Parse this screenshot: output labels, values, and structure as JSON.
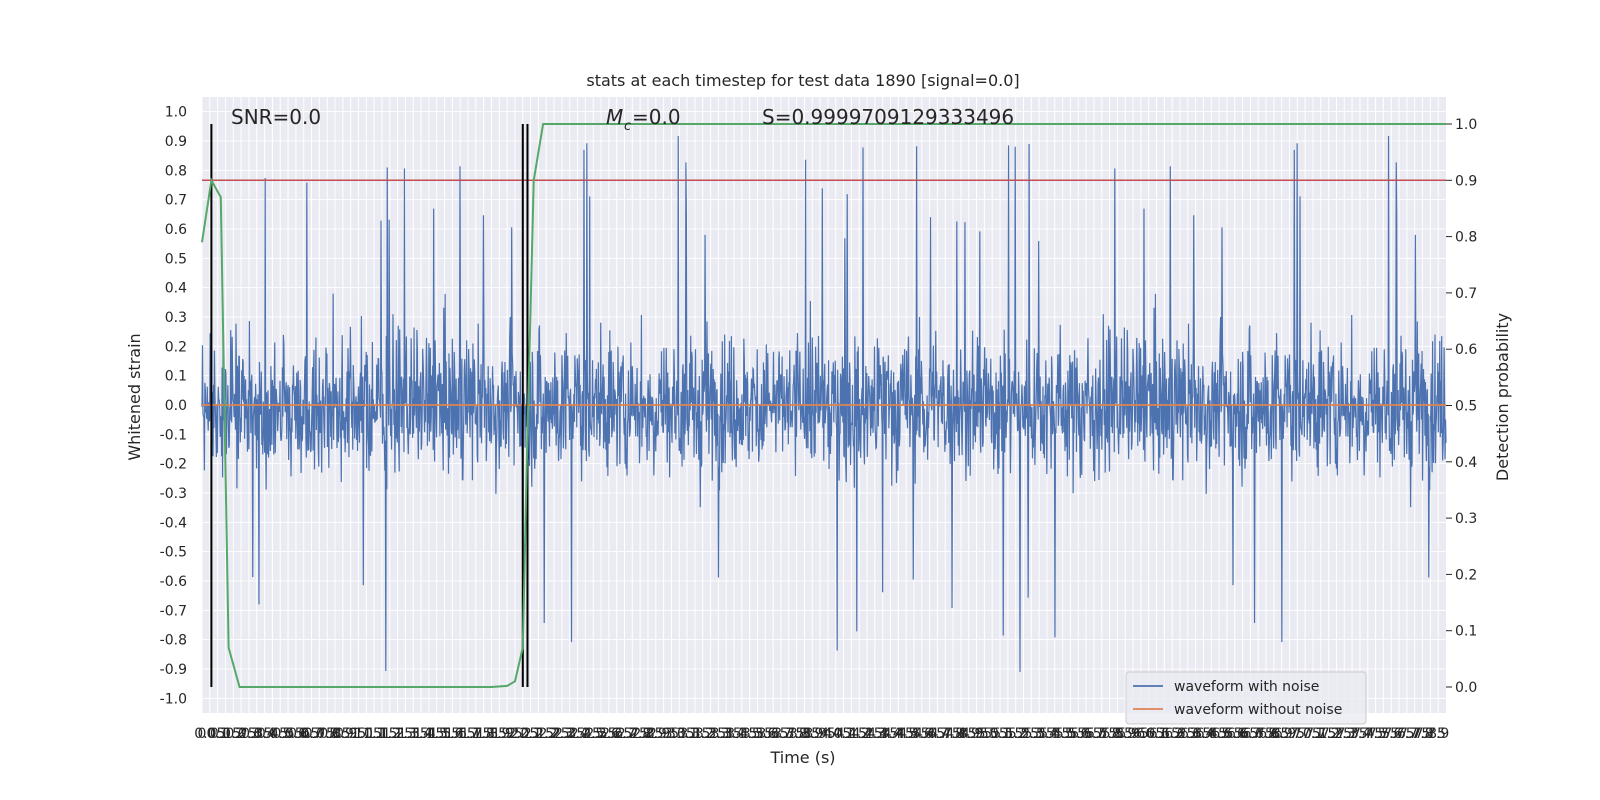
{
  "chart_data": {
    "type": "line",
    "title": "stats at each timestep for test data 1890 [signal=0.0]",
    "xlabel": "Time (s)",
    "ylabel": "Whitened strain",
    "ylabel_right": "Detection probability",
    "xlim": [
      0.0,
      7.95
    ],
    "ylim": [
      -1.05,
      1.05
    ],
    "ylim_right": [
      -0.05,
      1.0
    ],
    "x_ticks": [
      0.0,
      0.05,
      0.1,
      0.15,
      0.2,
      0.25,
      0.3,
      0.35,
      0.4,
      0.45,
      0.5,
      0.55,
      0.6,
      0.65,
      0.7,
      0.75,
      0.8,
      0.85,
      0.9,
      0.95,
      1.0,
      1.05,
      1.1,
      1.15,
      1.2,
      1.25,
      1.3,
      1.35,
      1.4,
      1.45,
      1.5,
      1.55,
      1.6,
      1.65,
      1.7,
      1.75,
      1.8,
      1.85,
      1.9,
      1.95,
      2.0,
      2.05,
      2.1,
      2.15,
      2.2,
      2.25,
      2.3,
      2.35,
      2.4,
      2.45,
      2.5,
      2.55,
      2.6,
      2.65,
      2.7,
      2.75,
      2.8,
      2.85,
      2.9,
      2.95,
      3.0,
      3.05,
      3.1,
      3.15,
      3.2,
      3.25,
      3.3,
      3.35,
      3.4,
      3.45,
      3.5,
      3.55,
      3.6,
      3.65,
      3.7,
      3.75,
      3.8,
      3.85,
      3.9,
      3.95,
      4.0,
      4.05,
      4.1,
      4.15,
      4.2,
      4.25,
      4.3,
      4.35,
      4.4,
      4.45,
      4.5,
      4.55,
      4.6,
      4.65,
      4.7,
      4.75,
      4.8,
      4.85,
      4.9,
      4.95,
      5.0,
      5.05,
      5.1,
      5.15,
      5.2,
      5.25,
      5.3,
      5.35,
      5.4,
      5.45,
      5.5,
      5.55,
      5.6,
      5.65,
      5.7,
      5.75,
      5.8,
      5.85,
      5.9,
      5.95,
      6.0,
      6.05,
      6.1,
      6.15,
      6.2,
      6.25,
      6.3,
      6.35,
      6.4,
      6.45,
      6.5,
      6.55,
      6.6,
      6.65,
      6.7,
      6.75,
      6.8,
      6.85,
      6.9,
      6.95,
      7.0,
      7.05,
      7.1,
      7.15,
      7.2,
      7.25,
      7.3,
      7.35,
      7.4,
      7.45,
      7.5,
      7.55,
      7.6,
      7.65,
      7.7,
      7.75,
      7.8,
      7.85,
      7.9
    ],
    "y_ticks": [
      "1.0",
      "0.9",
      "0.8",
      "0.7",
      "0.6",
      "0.5",
      "0.4",
      "0.3",
      "0.2",
      "0.1",
      "0.0",
      "-0.1",
      "-0.2",
      "-0.3",
      "-0.4",
      "-0.5",
      "-0.6",
      "-0.7",
      "-0.8",
      "-0.9",
      "-1.0"
    ],
    "y_ticks_right": [
      "1.0",
      "0.9",
      "0.8",
      "0.7",
      "0.6",
      "0.5",
      "0.4",
      "0.3",
      "0.2",
      "0.1",
      "0.0"
    ],
    "grid": true,
    "legend_position": "lower-right",
    "annotations": {
      "snr": "SNR=0.0",
      "mc": "=0.0",
      "mc_symbol": "M",
      "mc_sub": "c",
      "s_stat": "S=0.9999709129333496"
    },
    "series": [
      {
        "name": "waveform with noise",
        "color": "#4c72b0",
        "description_level": "noise envelope approx ±0.4, spikes to ±1.0"
      },
      {
        "name": "waveform without noise",
        "color": "#dd8452",
        "constant": 0.0
      }
    ],
    "detection_probability": {
      "color": "#55a868",
      "points": [
        [
          0.0,
          0.79
        ],
        [
          0.06,
          0.9
        ],
        [
          0.1,
          0.88
        ],
        [
          0.12,
          0.87
        ],
        [
          0.17,
          0.07
        ],
        [
          0.24,
          0.0
        ],
        [
          0.5,
          0.0
        ],
        [
          1.0,
          0.0
        ],
        [
          1.5,
          0.0
        ],
        [
          1.85,
          0.0
        ],
        [
          1.95,
          0.002
        ],
        [
          2.0,
          0.01
        ],
        [
          2.05,
          0.07
        ],
        [
          2.08,
          0.45
        ],
        [
          2.12,
          0.9
        ],
        [
          2.18,
          1.0
        ],
        [
          3.0,
          1.0
        ],
        [
          4.0,
          1.0
        ],
        [
          5.0,
          1.0
        ],
        [
          6.0,
          1.0
        ],
        [
          7.0,
          1.0
        ],
        [
          7.95,
          1.0
        ]
      ]
    },
    "threshold_line": {
      "color": "#c44e52",
      "value": 0.9
    },
    "vertical_markers": {
      "color": "#000000",
      "x": [
        0.06,
        2.05,
        2.08
      ]
    }
  }
}
